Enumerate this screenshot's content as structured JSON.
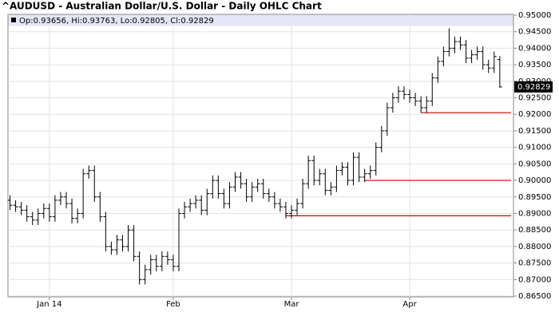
{
  "chart_data": {
    "type": "ohlc",
    "title": "^AUDUSD - Australian Dollar/U.S. Dollar - Daily OHLC Chart",
    "info": "Op:0.93656, Hi:0.93763, Lo:0.92805, Cl:0.92829",
    "last_price_label": {
      "value": 0.92829,
      "label": "0.92829"
    },
    "categories": [
      null,
      null,
      null,
      null,
      null,
      null,
      null,
      "Jan 14",
      null,
      null,
      null,
      null,
      null,
      null,
      null,
      null,
      null,
      null,
      null,
      null,
      null,
      null,
      null,
      null,
      null,
      null,
      null,
      null,
      null,
      "Feb",
      null,
      null,
      null,
      null,
      null,
      null,
      null,
      null,
      null,
      null,
      null,
      null,
      null,
      null,
      null,
      null,
      null,
      null,
      null,
      null,
      "Mar",
      null,
      null,
      null,
      null,
      null,
      null,
      null,
      null,
      null,
      null,
      null,
      null,
      null,
      null,
      null,
      null,
      null,
      null,
      null,
      null,
      "Apr",
      null,
      null,
      null,
      null,
      null,
      null,
      null,
      null,
      null,
      null,
      null,
      null,
      null,
      null,
      null,
      null
    ],
    "open": [
      0.894,
      0.8925,
      0.892,
      0.891,
      0.889,
      0.888,
      0.89,
      0.8915,
      0.889,
      0.894,
      0.895,
      0.893,
      0.8885,
      0.89,
      0.902,
      0.903,
      0.895,
      0.889,
      0.88,
      0.879,
      0.882,
      0.88,
      0.885,
      0.877,
      0.87,
      0.873,
      0.876,
      0.874,
      0.877,
      0.876,
      0.874,
      0.89,
      0.892,
      0.893,
      0.894,
      0.891,
      0.896,
      0.9,
      0.896,
      0.893,
      0.898,
      0.901,
      0.899,
      0.895,
      0.898,
      0.899,
      0.896,
      0.895,
      0.893,
      0.892,
      0.89,
      0.891,
      0.893,
      0.899,
      0.906,
      0.9,
      0.902,
      0.897,
      0.898,
      0.903,
      0.904,
      0.9,
      0.907,
      0.901,
      0.902,
      0.903,
      0.91,
      0.915,
      0.922,
      0.925,
      0.927,
      0.926,
      0.925,
      0.924,
      0.922,
      0.924,
      0.931,
      0.936,
      0.939,
      0.94,
      0.942,
      0.941,
      0.937,
      0.938,
      0.939,
      0.935,
      0.934,
      0.93656
    ],
    "high": [
      0.8955,
      0.894,
      0.8935,
      0.8925,
      0.8905,
      0.8915,
      0.893,
      0.893,
      0.8955,
      0.8965,
      0.8965,
      0.8945,
      0.8915,
      0.9035,
      0.9045,
      0.9045,
      0.8965,
      0.8905,
      0.8815,
      0.8835,
      0.8835,
      0.8865,
      0.8865,
      0.8785,
      0.8745,
      0.8775,
      0.8775,
      0.8785,
      0.8785,
      0.8775,
      0.8915,
      0.8935,
      0.8945,
      0.8955,
      0.8955,
      0.8975,
      0.9015,
      0.9015,
      0.8975,
      0.8995,
      0.9025,
      0.9025,
      0.9005,
      0.8995,
      0.9005,
      0.9005,
      0.8975,
      0.8965,
      0.8945,
      0.8935,
      0.8925,
      0.8945,
      0.9005,
      0.9075,
      0.9075,
      0.9035,
      0.9035,
      0.8995,
      0.9045,
      0.9055,
      0.9055,
      0.9085,
      0.9085,
      0.9035,
      0.9045,
      0.9115,
      0.9165,
      0.9235,
      0.9265,
      0.9285,
      0.9285,
      0.9275,
      0.9265,
      0.9255,
      0.9255,
      0.9325,
      0.9375,
      0.9405,
      0.946,
      0.9435,
      0.9435,
      0.9425,
      0.9395,
      0.9405,
      0.9405,
      0.9365,
      0.939,
      0.93763
    ],
    "low": [
      0.891,
      0.8905,
      0.8895,
      0.8875,
      0.8865,
      0.8865,
      0.8885,
      0.8875,
      0.8875,
      0.8925,
      0.8915,
      0.887,
      0.887,
      0.8885,
      0.9005,
      0.8935,
      0.8875,
      0.8785,
      0.8775,
      0.8775,
      0.8785,
      0.8785,
      0.8755,
      0.8685,
      0.8685,
      0.8715,
      0.8725,
      0.8725,
      0.8745,
      0.8725,
      0.8725,
      0.8885,
      0.8905,
      0.8915,
      0.8895,
      0.8895,
      0.8945,
      0.8945,
      0.8915,
      0.8915,
      0.8965,
      0.8975,
      0.8935,
      0.8935,
      0.8965,
      0.8945,
      0.8935,
      0.8915,
      0.8905,
      0.8885,
      0.8885,
      0.8895,
      0.8915,
      0.8975,
      0.8985,
      0.8985,
      0.8955,
      0.8955,
      0.8965,
      0.9015,
      0.8985,
      0.8985,
      0.8995,
      0.8995,
      0.9005,
      0.9015,
      0.9085,
      0.9135,
      0.9205,
      0.9235,
      0.9245,
      0.9235,
      0.9225,
      0.9205,
      0.9205,
      0.9225,
      0.9295,
      0.9345,
      0.9375,
      0.9385,
      0.9395,
      0.9355,
      0.9355,
      0.9365,
      0.9335,
      0.9325,
      0.9325,
      0.92805
    ],
    "close": [
      0.8925,
      0.892,
      0.891,
      0.889,
      0.888,
      0.89,
      0.8915,
      0.889,
      0.894,
      0.895,
      0.893,
      0.8885,
      0.89,
      0.902,
      0.903,
      0.895,
      0.889,
      0.88,
      0.879,
      0.882,
      0.88,
      0.885,
      0.877,
      0.87,
      0.873,
      0.876,
      0.874,
      0.877,
      0.876,
      0.874,
      0.89,
      0.892,
      0.893,
      0.894,
      0.891,
      0.896,
      0.9,
      0.896,
      0.893,
      0.898,
      0.901,
      0.899,
      0.895,
      0.898,
      0.899,
      0.896,
      0.895,
      0.893,
      0.892,
      0.89,
      0.891,
      0.893,
      0.899,
      0.906,
      0.9,
      0.902,
      0.897,
      0.898,
      0.903,
      0.904,
      0.9,
      0.907,
      0.901,
      0.902,
      0.903,
      0.91,
      0.915,
      0.922,
      0.925,
      0.927,
      0.926,
      0.925,
      0.924,
      0.922,
      0.924,
      0.931,
      0.936,
      0.939,
      0.94,
      0.942,
      0.941,
      0.937,
      0.938,
      0.939,
      0.935,
      0.934,
      0.9375,
      0.92829
    ],
    "color": "#000000",
    "lines": [
      {
        "y": 0.9205,
        "x_start": 73
      },
      {
        "y": 0.9,
        "x_start": 63
      },
      {
        "y": 0.8893,
        "x_start": 49
      }
    ],
    "line_color": "#cc0000",
    "ylim": [
      0.865,
      0.95
    ],
    "yticks": [
      {
        "value": 0.865,
        "label": "0.86500"
      },
      {
        "value": 0.87,
        "label": "0.87000"
      },
      {
        "value": 0.875,
        "label": "0.87500"
      },
      {
        "value": 0.88,
        "label": "0.88000"
      },
      {
        "value": 0.885,
        "label": "0.88500"
      },
      {
        "value": 0.89,
        "label": "0.89000"
      },
      {
        "value": 0.895,
        "label": "0.89500"
      },
      {
        "value": 0.9,
        "label": "0.90000"
      },
      {
        "value": 0.905,
        "label": "0.90500"
      },
      {
        "value": 0.91,
        "label": "0.91000"
      },
      {
        "value": 0.915,
        "label": "0.91500"
      },
      {
        "value": 0.92,
        "label": "0.92000"
      },
      {
        "value": 0.925,
        "label": "0.92500"
      },
      {
        "value": 0.93,
        "label": "0.93000"
      },
      {
        "value": 0.935,
        "label": "0.93500"
      },
      {
        "value": 0.94,
        "label": "0.94000"
      },
      {
        "value": 0.945,
        "label": "0.94500"
      },
      {
        "value": 0.95,
        "label": "0.95000"
      }
    ],
    "grid": true
  }
}
